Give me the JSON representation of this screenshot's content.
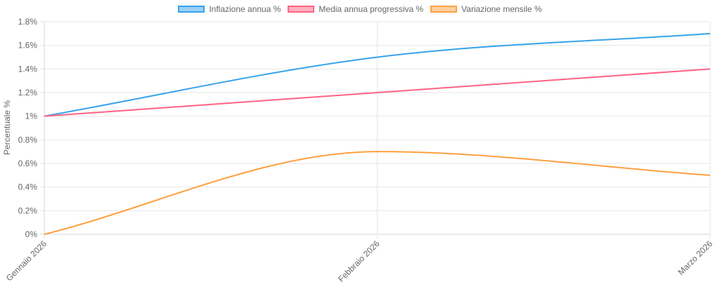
{
  "chart_data": {
    "type": "line",
    "title": "",
    "xlabel": "",
    "ylabel": "Percentuale %",
    "categories": [
      "Gennaio 2026",
      "Febbraio 2026",
      "Marzo 2026"
    ],
    "ylim": [
      0,
      1.8
    ],
    "yticks": [
      "0%",
      "0.2%",
      "0.4%",
      "0.6%",
      "0.8%",
      "1%",
      "1.2%",
      "1.4%",
      "1.6%",
      "1.8%"
    ],
    "grid": true,
    "legend_position": "top",
    "series": [
      {
        "name": "Inflazione annua %",
        "values": [
          1.0,
          1.5,
          1.7
        ],
        "color": "#36a2eb",
        "fill": "#9ad0f5"
      },
      {
        "name": "Media annua progressiva %",
        "values": [
          1.0,
          1.2,
          1.4
        ],
        "color": "#ff6384",
        "fill": "#ffb1c1"
      },
      {
        "name": "Variazione mensile %",
        "values": [
          0.0,
          0.7,
          0.5
        ],
        "color": "#ff9f40",
        "fill": "#ffcf9f"
      }
    ]
  }
}
